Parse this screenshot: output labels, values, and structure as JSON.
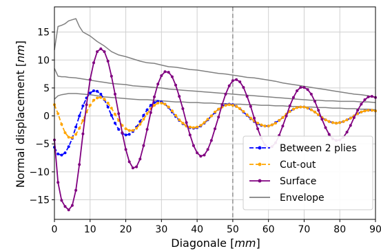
{
  "chart_data": {
    "type": "line",
    "xlabel": "Diagonale",
    "xlabel_unit": "mm",
    "ylabel": "Normal displacement",
    "ylabel_unit": "nm",
    "xlim": [
      0,
      90
    ],
    "ylim": [
      -18.5,
      19.5
    ],
    "xticks": [
      0,
      10,
      20,
      30,
      40,
      50,
      60,
      70,
      80,
      90
    ],
    "yticks": [
      -15,
      -10,
      -5,
      0,
      5,
      10,
      15
    ],
    "grid": true,
    "legend_position": "lower-right",
    "vline_x": 50,
    "series": [
      {
        "name": "Between 2 plies",
        "color": "#0000ff",
        "line": "dashed",
        "marker": "dot",
        "x": [
          0,
          1,
          2,
          3,
          4,
          5,
          6,
          7,
          8,
          9,
          10,
          11,
          12,
          13,
          14,
          15,
          16,
          17,
          18,
          19,
          20,
          21,
          22,
          23,
          24,
          25,
          26,
          27,
          28,
          29,
          30,
          31,
          32,
          33,
          34,
          35,
          36,
          37,
          38,
          39,
          40,
          41,
          42,
          43,
          44,
          45,
          46,
          47,
          48,
          49,
          50,
          51,
          52,
          53,
          54,
          55,
          56,
          57,
          58,
          59,
          60,
          61,
          62,
          63,
          64,
          65,
          66,
          67,
          68,
          69,
          70,
          71,
          72,
          73,
          74,
          75,
          76,
          77,
          78,
          79,
          80,
          81,
          82,
          83,
          84,
          85,
          86,
          87,
          88,
          89,
          90
        ],
        "y": [
          -5.6,
          -6.8,
          -7.0,
          -6.6,
          -5.5,
          -4.0,
          -2.0,
          0.0,
          1.8,
          3.2,
          4.1,
          4.5,
          4.4,
          3.9,
          2.9,
          1.6,
          0.1,
          -1.3,
          -2.4,
          -3.1,
          -3.4,
          -3.3,
          -2.8,
          -2.0,
          -1.0,
          0.1,
          1.1,
          1.9,
          2.4,
          2.6,
          2.5,
          2.1,
          1.5,
          0.7,
          -0.1,
          -0.8,
          -1.4,
          -1.8,
          -2.1,
          -2.2,
          -2.1,
          -1.8,
          -1.3,
          -0.7,
          0.0,
          0.6,
          1.2,
          1.7,
          2.0,
          2.1,
          2.0,
          1.7,
          1.3,
          0.7,
          0.1,
          -0.5,
          -1.0,
          -1.4,
          -1.7,
          -1.8,
          -1.8,
          -1.6,
          -1.2,
          -0.8,
          -0.3,
          0.3,
          0.8,
          1.2,
          1.5,
          1.6,
          1.6,
          1.4,
          1.1,
          0.7,
          0.2,
          -0.3,
          -0.7,
          -1.0,
          -1.2,
          -1.3,
          -1.2,
          -1.0,
          -0.7,
          -0.4,
          0.0,
          0.4,
          0.7,
          0.9,
          1.0,
          1.0,
          0.9
        ]
      },
      {
        "name": "Cut-out",
        "color": "#ffa500",
        "line": "dashed",
        "marker": "dot",
        "x": [
          0,
          1,
          2,
          3,
          4,
          5,
          6,
          7,
          8,
          9,
          10,
          11,
          12,
          13,
          14,
          15,
          16,
          17,
          18,
          19,
          20,
          21,
          22,
          23,
          24,
          25,
          26,
          27,
          28,
          29,
          30,
          31,
          32,
          33,
          34,
          35,
          36,
          37,
          38,
          39,
          40,
          41,
          42,
          43,
          44,
          45,
          46,
          47,
          48,
          49,
          50,
          51,
          52,
          53,
          54,
          55,
          56,
          57,
          58,
          59,
          60,
          61,
          62,
          63,
          64,
          65,
          66,
          67,
          68,
          69,
          70,
          71,
          72,
          73,
          74,
          75,
          76,
          77,
          78,
          79,
          80,
          81,
          82,
          83,
          84,
          85,
          86,
          87,
          88,
          89,
          90
        ],
        "y": [
          2.0,
          0.4,
          -1.5,
          -3.0,
          -3.8,
          -3.9,
          -3.3,
          -2.2,
          -0.8,
          0.7,
          1.9,
          2.8,
          3.2,
          3.3,
          3.0,
          2.3,
          1.4,
          0.3,
          -0.8,
          -1.7,
          -2.3,
          -2.6,
          -2.6,
          -2.2,
          -1.5,
          -0.6,
          0.4,
          1.3,
          1.9,
          2.3,
          2.3,
          2.1,
          1.6,
          0.9,
          0.1,
          -0.7,
          -1.3,
          -1.8,
          -2.0,
          -2.1,
          -2.0,
          -1.7,
          -1.2,
          -0.6,
          0.0,
          0.7,
          1.2,
          1.6,
          1.9,
          2.0,
          1.9,
          1.7,
          1.3,
          0.8,
          0.2,
          -0.4,
          -0.9,
          -1.3,
          -1.6,
          -1.8,
          -1.8,
          -1.6,
          -1.3,
          -0.8,
          -0.3,
          0.3,
          0.8,
          1.2,
          1.5,
          1.6,
          1.6,
          1.4,
          1.1,
          0.7,
          0.2,
          -0.3,
          -0.7,
          -1.0,
          -1.2,
          -1.3,
          -1.2,
          -1.0,
          -0.7,
          -0.4,
          0.0,
          0.4,
          0.7,
          0.9,
          1.0,
          1.0,
          0.9
        ]
      },
      {
        "name": "Surface",
        "color": "#800080",
        "line": "solid",
        "marker": "dot",
        "x": [
          0,
          1,
          2,
          3,
          4,
          5,
          6,
          7,
          8,
          9,
          10,
          11,
          12,
          13,
          14,
          15,
          16,
          17,
          18,
          19,
          20,
          21,
          22,
          23,
          24,
          25,
          26,
          27,
          28,
          29,
          30,
          31,
          32,
          33,
          34,
          35,
          36,
          37,
          38,
          39,
          40,
          41,
          42,
          43,
          44,
          45,
          46,
          47,
          48,
          49,
          50,
          51,
          52,
          53,
          54,
          55,
          56,
          57,
          58,
          59,
          60,
          61,
          62,
          63,
          64,
          65,
          66,
          67,
          68,
          69,
          70,
          71,
          72,
          73,
          74,
          75,
          76,
          77,
          78,
          79,
          80,
          81,
          82,
          83,
          84,
          85,
          86,
          87,
          88,
          89,
          90
        ],
        "y": [
          -4.3,
          -11.9,
          -15.1,
          -16.2,
          -16.8,
          -16.0,
          -13.3,
          -8.7,
          -3.2,
          2.0,
          6.5,
          9.5,
          11.5,
          12.0,
          11.5,
          9.8,
          7.1,
          3.9,
          0.4,
          -3.0,
          -6.0,
          -8.2,
          -9.3,
          -9.1,
          -7.7,
          -5.3,
          -2.4,
          0.6,
          3.4,
          5.7,
          7.2,
          7.9,
          7.8,
          7.0,
          5.5,
          3.5,
          1.3,
          -1.2,
          -3.4,
          -5.3,
          -6.6,
          -7.2,
          -7.0,
          -6.0,
          -4.4,
          -2.3,
          -0.2,
          2.0,
          3.9,
          5.4,
          6.3,
          6.5,
          6.1,
          5.1,
          3.5,
          1.7,
          -0.4,
          -2.3,
          -4.0,
          -5.2,
          -5.7,
          -5.5,
          -4.8,
          -3.5,
          -1.8,
          0.0,
          1.8,
          3.3,
          4.5,
          5.1,
          5.1,
          4.7,
          3.9,
          2.6,
          1.0,
          -0.6,
          -2.1,
          -3.3,
          -4.1,
          -4.4,
          -4.3,
          -3.8,
          -2.9,
          -1.7,
          -0.3,
          1.0,
          2.1,
          2.9,
          3.4,
          3.5,
          3.3
        ]
      },
      {
        "name": "Envelope",
        "color": "#808080",
        "line": "solid",
        "marker": "none",
        "x": [
          0,
          1,
          2,
          3,
          4,
          5,
          6,
          7,
          8,
          10,
          12,
          14,
          16,
          18,
          20,
          22,
          24,
          26,
          28,
          30,
          32,
          34,
          36,
          38,
          40,
          42,
          44,
          46,
          48,
          50,
          52,
          54,
          56,
          58,
          60,
          62,
          64,
          66,
          68,
          70,
          72,
          74,
          76,
          78,
          80,
          82,
          84,
          86,
          88,
          90
        ],
        "y": [
          11.8,
          16.0,
          16.2,
          16.5,
          17.0,
          17.2,
          17.4,
          16.0,
          15.0,
          14.3,
          13.3,
          12.5,
          11.5,
          10.9,
          10.6,
          10.2,
          9.8,
          9.5,
          9.4,
          9.1,
          8.8,
          8.7,
          8.5,
          8.3,
          8.2,
          8.0,
          7.8,
          7.6,
          7.5,
          7.3,
          7.1,
          6.9,
          6.8,
          6.6,
          6.4,
          6.2,
          5.9,
          5.7,
          5.5,
          5.3,
          5.1,
          4.9,
          4.7,
          4.5,
          4.3,
          4.1,
          3.9,
          3.8,
          3.6,
          3.3
        ]
      },
      {
        "name": "",
        "color": "#808080",
        "line": "solid",
        "marker": "none",
        "x": [
          0,
          1,
          2,
          3,
          4,
          6,
          8,
          10,
          12,
          14,
          16,
          18,
          20,
          22,
          24,
          26,
          28,
          30,
          32,
          34,
          36,
          38,
          40,
          42,
          44,
          46,
          48,
          50,
          52,
          54,
          56,
          58,
          60,
          62,
          64,
          66,
          68,
          70,
          72,
          74,
          76,
          78,
          80,
          82,
          84,
          86,
          88,
          90
        ],
        "y": [
          8.5,
          7.1,
          7.0,
          7.0,
          6.9,
          6.8,
          6.6,
          6.4,
          6.2,
          6.0,
          5.8,
          5.7,
          5.6,
          5.4,
          5.3,
          5.2,
          5.1,
          5.0,
          4.8,
          4.7,
          4.6,
          4.5,
          4.4,
          4.3,
          4.2,
          4.1,
          4.0,
          3.9,
          3.8,
          3.7,
          3.6,
          3.5,
          3.4,
          3.3,
          3.2,
          3.1,
          3.0,
          2.9,
          2.8,
          2.8,
          2.7,
          2.7,
          2.6,
          2.6,
          2.6,
          2.5,
          2.5,
          2.4
        ]
      },
      {
        "name": "",
        "color": "#808080",
        "line": "solid",
        "marker": "none",
        "x": [
          0,
          1,
          2,
          3,
          4,
          6,
          8,
          10,
          12,
          14,
          16,
          18,
          20,
          22,
          24,
          26,
          28,
          30,
          32,
          34,
          36,
          38,
          40,
          42,
          44,
          46,
          48,
          50,
          52,
          54,
          56,
          58,
          60,
          62,
          64,
          66,
          68,
          70,
          72,
          74,
          76,
          78,
          80,
          82,
          84,
          86,
          88,
          90
        ],
        "y": [
          3.0,
          3.6,
          3.8,
          3.9,
          4.0,
          4.0,
          3.9,
          3.8,
          3.6,
          3.4,
          3.3,
          3.2,
          3.1,
          3.0,
          2.9,
          2.9,
          2.8,
          2.7,
          2.6,
          2.5,
          2.5,
          2.4,
          2.4,
          2.3,
          2.3,
          2.2,
          2.2,
          2.1,
          2.1,
          2.0,
          2.0,
          1.9,
          1.9,
          1.8,
          1.8,
          1.7,
          1.7,
          1.6,
          1.6,
          1.5,
          1.5,
          1.4,
          1.4,
          1.3,
          1.3,
          1.2,
          1.2,
          1.1
        ]
      }
    ]
  }
}
